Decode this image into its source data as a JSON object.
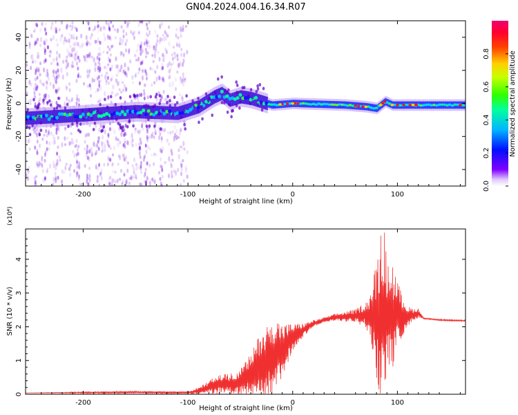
{
  "title": "GN04.2024.004.16.34.R07",
  "chart_data": [
    {
      "type": "heatmap",
      "xlabel": "Height of straight line (km)",
      "ylabel": "Frequency (Hz)",
      "xlim": [
        -255,
        165
      ],
      "ylim": [
        -50,
        50
      ],
      "x_ticks": [
        -200,
        -100,
        0,
        100
      ],
      "x_tick_labels": [
        "-200",
        "-100",
        "0",
        "100"
      ],
      "y_ticks": [
        40,
        20,
        0,
        -20,
        -40
      ],
      "y_tick_labels": [
        "40",
        "20",
        "0",
        "-20",
        "-40"
      ],
      "colorbar": {
        "label": "Normalized spectral amplitude",
        "range": [
          0,
          1
        ],
        "ticks": [
          0.0,
          0.2,
          0.4,
          0.6,
          0.8
        ],
        "tick_labels": [
          "0.0",
          "0.2",
          "0.4",
          "0.6",
          "0.8"
        ],
        "colors": [
          "#ffffff",
          "#7f00ff",
          "#0000ff",
          "#00c8ff",
          "#00ff80",
          "#80ff00",
          "#ffff00",
          "#ff8000",
          "#ff0000",
          "#ff0080"
        ]
      },
      "ridge": {
        "x": [
          -255,
          -200,
          -150,
          -110,
          -90,
          -75,
          -68,
          -60,
          -50,
          -40,
          -30,
          -20,
          0,
          50,
          70,
          80,
          88,
          95,
          120,
          165
        ],
        "freq": [
          -9,
          -7,
          -5,
          -6,
          -2,
          4,
          6,
          2,
          4,
          3,
          1,
          -1,
          0,
          -1,
          -2,
          -3,
          1,
          -1,
          -1,
          -1
        ]
      }
    },
    {
      "type": "line",
      "xlabel": "Height of straight line (km)",
      "ylabel": "SNR (10 * v/v)",
      "y_multiplier": "(x10⁴)",
      "xlim": [
        -255,
        165
      ],
      "ylim": [
        0,
        4.9
      ],
      "x_ticks": [
        -200,
        -100,
        0,
        100
      ],
      "x_tick_labels": [
        "-200",
        "-100",
        "0",
        "100"
      ],
      "y_ticks": [
        0,
        1,
        2,
        3,
        4
      ],
      "y_tick_labels": [
        "0",
        "1",
        "2",
        "3",
        "4"
      ],
      "color": "#f03030",
      "series": [
        {
          "envelope_x": [
            -255,
            -200,
            -150,
            -100,
            -90,
            -80,
            -70,
            -60,
            -50,
            -40,
            -30,
            -20,
            -10,
            0,
            10,
            20,
            30,
            40,
            50,
            60,
            70,
            75,
            80,
            85,
            88,
            90,
            95,
            100,
            105,
            110,
            115,
            120,
            125,
            140,
            165
          ],
          "envelope_center": [
            0.04,
            0.05,
            0.06,
            0.05,
            0.1,
            0.2,
            0.3,
            0.3,
            0.35,
            0.6,
            0.9,
            1.1,
            1.3,
            1.7,
            1.9,
            2.1,
            2.2,
            2.28,
            2.3,
            2.32,
            2.35,
            2.3,
            2.2,
            2.3,
            2.4,
            2.3,
            2.3,
            2.35,
            2.35,
            2.3,
            2.35,
            2.4,
            2.25,
            2.2,
            2.18
          ],
          "envelope_amplitude": [
            0.0,
            0.02,
            0.03,
            0.03,
            0.1,
            0.2,
            0.3,
            0.3,
            0.4,
            0.6,
            1.0,
            1.3,
            0.8,
            0.4,
            0.2,
            0.1,
            0.08,
            0.1,
            0.15,
            0.2,
            0.4,
            0.8,
            1.8,
            2.6,
            2.5,
            1.5,
            1.7,
            1.0,
            0.6,
            0.3,
            0.2,
            0.15,
            0.02,
            0.02,
            0.02
          ]
        }
      ]
    }
  ]
}
